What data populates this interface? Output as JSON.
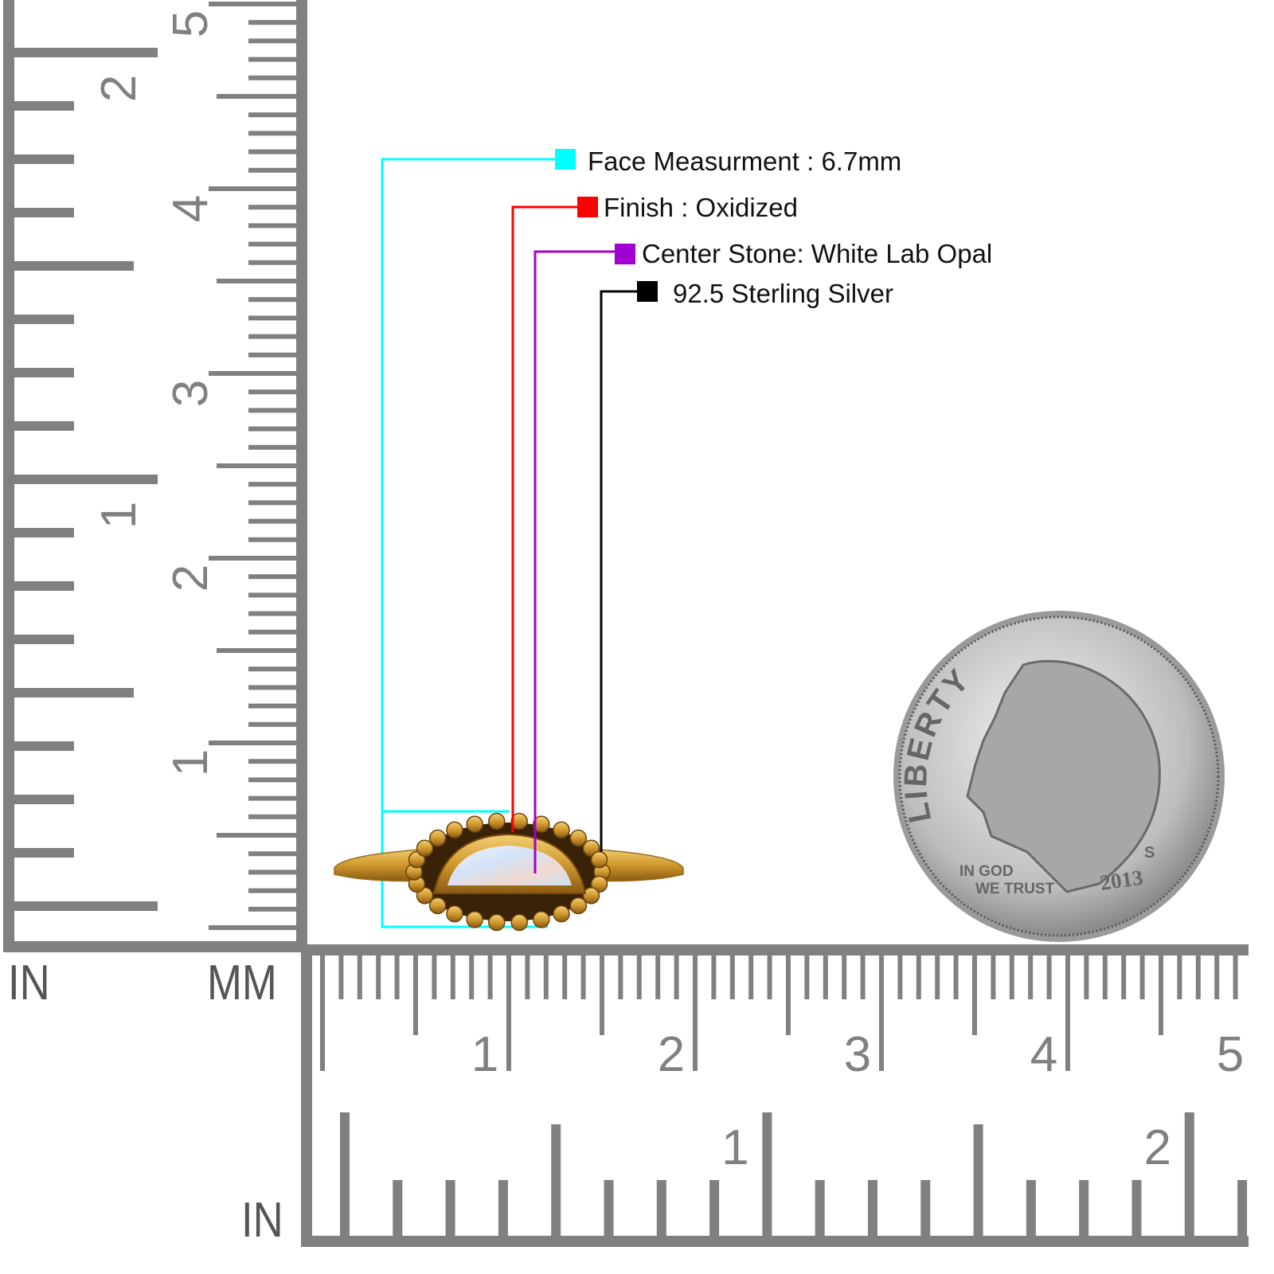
{
  "specs": [
    {
      "label": "Face Measurment : 6.7mm",
      "color": "#00ffff"
    },
    {
      "label": "Finish : Oxidized",
      "color": "#ff0000"
    },
    {
      "label": "Center Stone: White Lab Opal",
      "color": "#a000d0"
    },
    {
      "label": "92.5 Sterling Silver",
      "color": "#000000"
    }
  ],
  "rulers": {
    "unit_in_left": "IN",
    "unit_mm": "MM",
    "unit_in_bottom": "IN",
    "left_cm_labels": [
      "1",
      "2",
      "3",
      "4",
      "5"
    ],
    "left_in_labels": [
      "1",
      "2"
    ],
    "bottom_cm_labels": [
      "1",
      "2",
      "3",
      "4",
      "5"
    ],
    "bottom_in_labels": [
      "1",
      "2"
    ],
    "color": "#808080"
  },
  "coin": {
    "legend": "LIBERTY",
    "motto_line1": "IN GOD",
    "motto_line2": "WE TRUST",
    "year": "2013",
    "mint_mark": "S"
  },
  "ring": {
    "metal_color": "#d9a43a",
    "stone_color": "#dfe8f5"
  }
}
